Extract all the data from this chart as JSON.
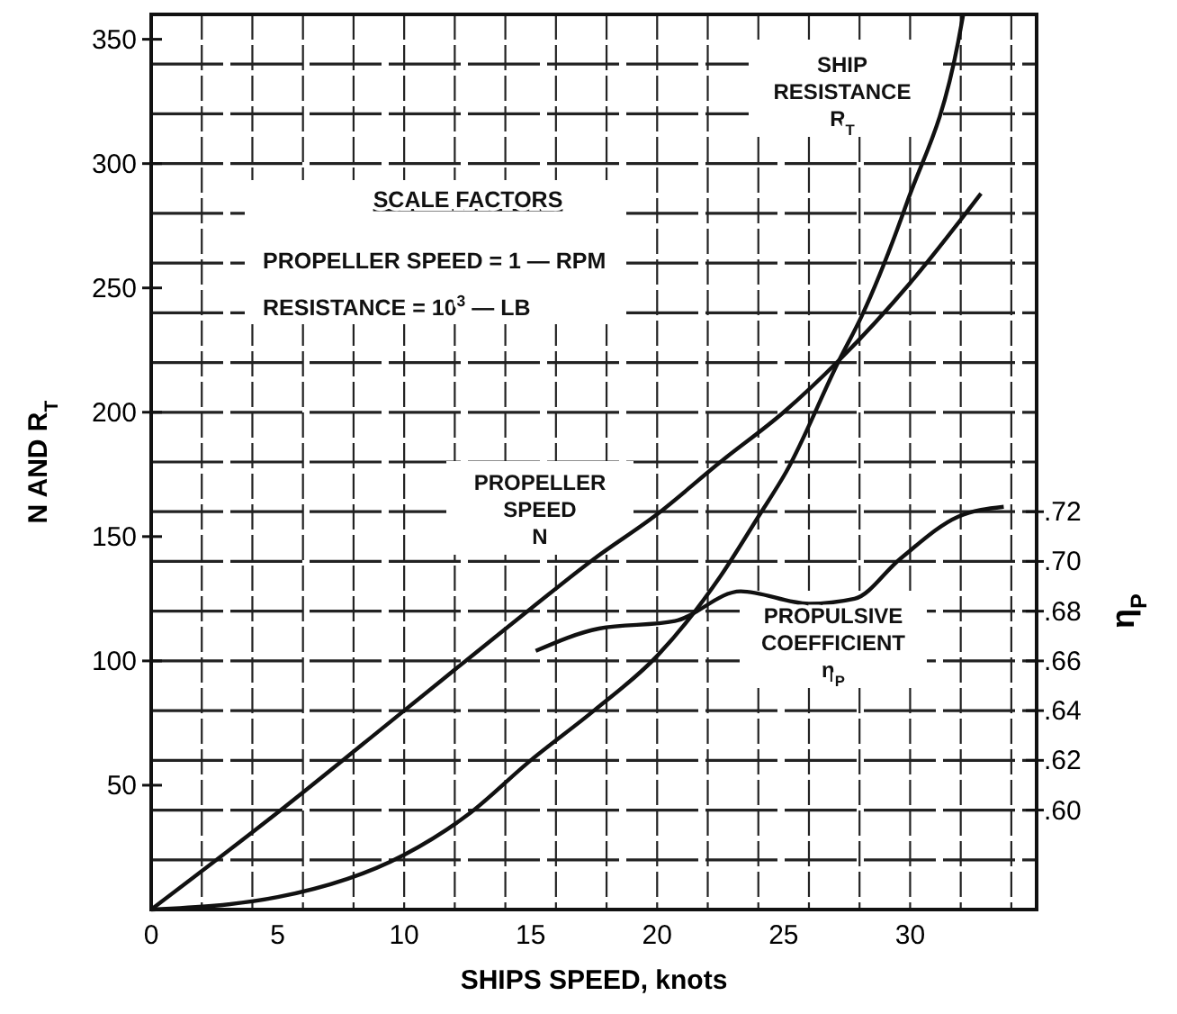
{
  "chart_data": {
    "type": "line",
    "xlabel": "SHIPS SPEED, knots",
    "ylabel": "N AND R$_{T}$",
    "y2label": "η$_{P}$",
    "xlim": [
      0,
      35
    ],
    "xticks": [
      0,
      5,
      10,
      15,
      20,
      25,
      30
    ],
    "ylim": [
      0,
      360
    ],
    "yticks": [
      50,
      100,
      150,
      200,
      250,
      300,
      350
    ],
    "y2lim": [
      0.56,
      0.92
    ],
    "y2ticks": [
      {
        "value": 0.6,
        "label": ".60"
      },
      {
        "value": 0.62,
        "label": ".62"
      },
      {
        "value": 0.64,
        "label": ".64"
      },
      {
        "value": 0.66,
        "label": ".66"
      },
      {
        "value": 0.68,
        "label": ".68"
      },
      {
        "value": 0.7,
        "label": ".70"
      },
      {
        "value": 0.72,
        "label": ".72"
      }
    ],
    "grid": true,
    "series": [
      {
        "name": "SHIP RESISTANCE R$_{T}$",
        "color": "#111111",
        "x": [
          0,
          5,
          10,
          12.5,
          15,
          17.5,
          20,
          22.5,
          24,
          25.1,
          27.2,
          28.1,
          29.9,
          31.9,
          32.1
        ],
        "values": [
          0,
          5,
          22,
          38,
          60,
          80,
          102,
          134,
          158,
          176,
          221,
          239,
          285,
          349,
          360
        ]
      },
      {
        "name": "PROPELLER SPEED N",
        "color": "#111111",
        "x": [
          0,
          5,
          10,
          15,
          17.5,
          20,
          22.5,
          25,
          27.2,
          30,
          32.8
        ],
        "values": [
          0,
          39,
          80,
          121,
          141,
          159,
          180,
          200,
          221,
          252,
          288
        ]
      },
      {
        "name": "PROPULSIVE COEFFICIENT η$_{P}$",
        "color": "#111111",
        "axis": "y2",
        "x": [
          15.2,
          17.7,
          20.7,
          23.3,
          26,
          27.8,
          29.6,
          31.9,
          33.7
        ],
        "values": [
          0.664,
          0.673,
          0.676,
          0.688,
          0.683,
          0.685,
          0.701,
          0.718,
          0.722
        ]
      }
    ],
    "annotations": [
      "SCALE FACTORS",
      "PROPELLER SPEED = 1 — RPM",
      "RESISTANCE = 10$^{3}$ — LB"
    ]
  }
}
